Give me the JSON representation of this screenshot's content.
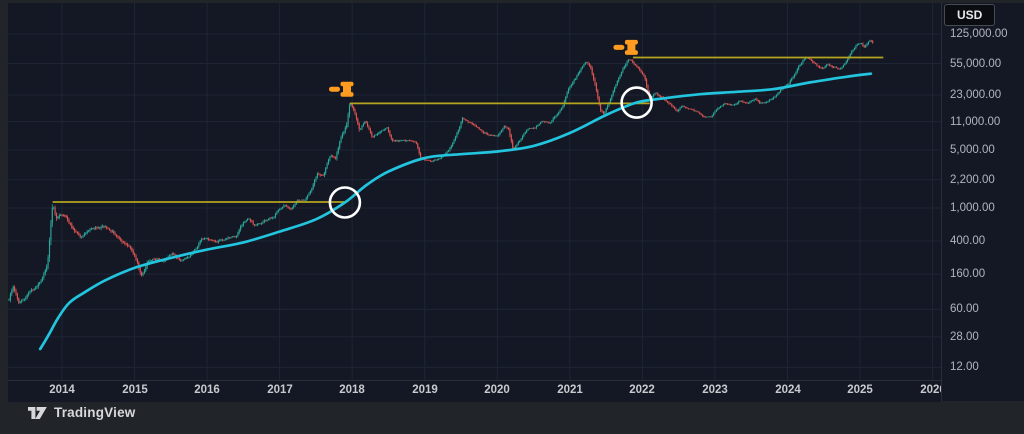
{
  "header": {
    "currency_button": "USD"
  },
  "watermark": {
    "brand": "TradingView"
  },
  "colors": {
    "background_outer": "#212428",
    "background_plot": "#141825",
    "grid": "#1e2534",
    "axis_border": "#2a2e39",
    "tick_text": "#b2b5be",
    "year_text": "#c8cace",
    "candle_up": "#2aa89b",
    "candle_down": "#e05552",
    "ma_line": "#22c4de",
    "resistance_yellow": "#b4a41e",
    "marker_orange": "#ff9b1e",
    "circle_white": "#ffffff"
  },
  "chart_data": {
    "type": "candlestick",
    "scale": "logarithmic",
    "price_unit": "USD",
    "visible_year_range": [
      2013.2,
      2026.1
    ],
    "x_axis": {
      "tick_labels": [
        "2014",
        "2015",
        "2016",
        "2017",
        "2018",
        "2019",
        "2020",
        "2021",
        "2022",
        "2023",
        "2024",
        "2025",
        "2026"
      ]
    },
    "y_axis": {
      "tick_labels": [
        "125,000.00",
        "55,000.00",
        "23,000.00",
        "11,000.00",
        "5,000.00",
        "2,200.00",
        "1,000.00",
        "400.00",
        "160.00",
        "60.00",
        "28.00",
        "12.00"
      ],
      "tick_values": [
        125000,
        55000,
        23000,
        11000,
        5000,
        2200,
        1000,
        400,
        160,
        60,
        28,
        12
      ]
    },
    "candle_keypoints": [
      [
        2013.27,
        80
      ],
      [
        2013.33,
        118
      ],
      [
        2013.4,
        72
      ],
      [
        2013.55,
        95
      ],
      [
        2013.7,
        128
      ],
      [
        2013.8,
        210
      ],
      [
        2013.87,
        1120
      ],
      [
        2013.92,
        760
      ],
      [
        2013.98,
        850
      ],
      [
        2014.06,
        800
      ],
      [
        2014.15,
        560
      ],
      [
        2014.25,
        450
      ],
      [
        2014.4,
        570
      ],
      [
        2014.6,
        590
      ],
      [
        2014.72,
        500
      ],
      [
        2014.85,
        380
      ],
      [
        2014.95,
        320
      ],
      [
        2015.0,
        265
      ],
      [
        2015.1,
        152
      ],
      [
        2015.18,
        225
      ],
      [
        2015.3,
        242
      ],
      [
        2015.42,
        226
      ],
      [
        2015.52,
        290
      ],
      [
        2015.62,
        235
      ],
      [
        2015.75,
        252
      ],
      [
        2015.85,
        320
      ],
      [
        2015.92,
        420
      ],
      [
        2016.0,
        430
      ],
      [
        2016.12,
        382
      ],
      [
        2016.25,
        420
      ],
      [
        2016.4,
        455
      ],
      [
        2016.5,
        670
      ],
      [
        2016.58,
        750
      ],
      [
        2016.65,
        620
      ],
      [
        2016.8,
        700
      ],
      [
        2016.92,
        790
      ],
      [
        2017.0,
        970
      ],
      [
        2017.06,
        1080
      ],
      [
        2017.15,
        980
      ],
      [
        2017.25,
        1200
      ],
      [
        2017.35,
        1260
      ],
      [
        2017.45,
        1800
      ],
      [
        2017.52,
        2600
      ],
      [
        2017.6,
        2450
      ],
      [
        2017.7,
        4300
      ],
      [
        2017.77,
        4000
      ],
      [
        2017.85,
        7200
      ],
      [
        2017.92,
        9800
      ],
      [
        2017.97,
        18600
      ],
      [
        2018.03,
        14500
      ],
      [
        2018.1,
        8800
      ],
      [
        2018.18,
        11200
      ],
      [
        2018.28,
        7100
      ],
      [
        2018.38,
        8300
      ],
      [
        2018.48,
        9200
      ],
      [
        2018.55,
        6600
      ],
      [
        2018.65,
        6400
      ],
      [
        2018.78,
        6500
      ],
      [
        2018.88,
        6300
      ],
      [
        2018.94,
        4100
      ],
      [
        2019.0,
        3800
      ],
      [
        2019.1,
        3600
      ],
      [
        2019.22,
        4000
      ],
      [
        2019.35,
        5300
      ],
      [
        2019.45,
        8000
      ],
      [
        2019.52,
        12000
      ],
      [
        2019.6,
        10800
      ],
      [
        2019.7,
        9800
      ],
      [
        2019.8,
        8200
      ],
      [
        2019.92,
        7400
      ],
      [
        2020.0,
        7300
      ],
      [
        2020.1,
        9800
      ],
      [
        2020.16,
        8600
      ],
      [
        2020.22,
        5000
      ],
      [
        2020.3,
        6400
      ],
      [
        2020.42,
        8900
      ],
      [
        2020.52,
        9200
      ],
      [
        2020.62,
        11400
      ],
      [
        2020.72,
        10600
      ],
      [
        2020.82,
        13500
      ],
      [
        2020.9,
        16500
      ],
      [
        2020.97,
        26000
      ],
      [
        2021.05,
        34000
      ],
      [
        2021.12,
        42000
      ],
      [
        2021.18,
        52000
      ],
      [
        2021.22,
        58000
      ],
      [
        2021.28,
        52000
      ],
      [
        2021.35,
        30000
      ],
      [
        2021.42,
        15500
      ],
      [
        2021.47,
        13800
      ],
      [
        2021.55,
        19000
      ],
      [
        2021.63,
        30000
      ],
      [
        2021.72,
        45000
      ],
      [
        2021.8,
        60000
      ],
      [
        2021.84,
        62000
      ],
      [
        2021.89,
        55000
      ],
      [
        2021.95,
        48000
      ],
      [
        2022.03,
        38000
      ],
      [
        2022.1,
        20000
      ],
      [
        2022.18,
        24000
      ],
      [
        2022.28,
        21000
      ],
      [
        2022.38,
        18000
      ],
      [
        2022.48,
        15000
      ],
      [
        2022.55,
        17000
      ],
      [
        2022.65,
        15500
      ],
      [
        2022.75,
        14500
      ],
      [
        2022.82,
        13000
      ],
      [
        2022.88,
        12300
      ],
      [
        2022.95,
        12800
      ],
      [
        2023.05,
        16500
      ],
      [
        2023.15,
        18000
      ],
      [
        2023.25,
        17200
      ],
      [
        2023.35,
        19500
      ],
      [
        2023.45,
        18500
      ],
      [
        2023.55,
        20500
      ],
      [
        2023.62,
        18200
      ],
      [
        2023.72,
        18800
      ],
      [
        2023.82,
        22000
      ],
      [
        2023.92,
        27000
      ],
      [
        2024.0,
        31000
      ],
      [
        2024.08,
        38000
      ],
      [
        2024.16,
        52000
      ],
      [
        2024.25,
        66000
      ],
      [
        2024.32,
        60000
      ],
      [
        2024.4,
        52000
      ],
      [
        2024.48,
        48000
      ],
      [
        2024.56,
        54000
      ],
      [
        2024.64,
        50000
      ],
      [
        2024.72,
        47000
      ],
      [
        2024.8,
        56000
      ],
      [
        2024.88,
        75000
      ],
      [
        2024.95,
        92000
      ],
      [
        2025.02,
        95000
      ],
      [
        2025.06,
        86000
      ],
      [
        2025.1,
        96000
      ],
      [
        2025.14,
        104000
      ],
      [
        2025.17,
        99000
      ]
    ],
    "ma_line": {
      "name": "long-term moving average",
      "color": "#22c4de",
      "keypoints": [
        [
          2013.7,
          20
        ],
        [
          2013.82,
          30
        ],
        [
          2013.95,
          48
        ],
        [
          2014.1,
          72
        ],
        [
          2014.3,
          95
        ],
        [
          2014.6,
          135
        ],
        [
          2015.0,
          190
        ],
        [
          2015.5,
          250
        ],
        [
          2016.0,
          315
        ],
        [
          2016.5,
          385
        ],
        [
          2017.0,
          520
        ],
        [
          2017.5,
          730
        ],
        [
          2017.9,
          1165
        ],
        [
          2018.2,
          1900
        ],
        [
          2018.5,
          2750
        ],
        [
          2019.0,
          4000
        ],
        [
          2019.5,
          4450
        ],
        [
          2020.0,
          4800
        ],
        [
          2020.5,
          5600
        ],
        [
          2021.0,
          8000
        ],
        [
          2021.5,
          13200
        ],
        [
          2021.92,
          18600
        ],
        [
          2022.3,
          21000
        ],
        [
          2022.8,
          23500
        ],
        [
          2023.3,
          25100
        ],
        [
          2023.8,
          27000
        ],
        [
          2024.3,
          32500
        ],
        [
          2024.8,
          38000
        ],
        [
          2025.15,
          41500
        ]
      ]
    },
    "resistance_lines": [
      {
        "price": 1180,
        "from_year": 2013.87,
        "to_year": 2017.9,
        "color": "#b4a41e"
      },
      {
        "price": 18200,
        "from_year": 2017.97,
        "to_year": 2022.1,
        "color": "#b4a41e"
      },
      {
        "price": 65000,
        "from_year": 2021.87,
        "to_year": 2025.32,
        "color": "#b4a41e"
      }
    ],
    "circle_markers": [
      {
        "year": 2017.9,
        "price": 1165,
        "radius": 15
      },
      {
        "year": 2021.92,
        "price": 18600,
        "radius": 15
      }
    ],
    "gavel_markers": [
      {
        "year": 2017.86,
        "price": 27000
      },
      {
        "year": 2021.78,
        "price": 86000
      }
    ]
  }
}
